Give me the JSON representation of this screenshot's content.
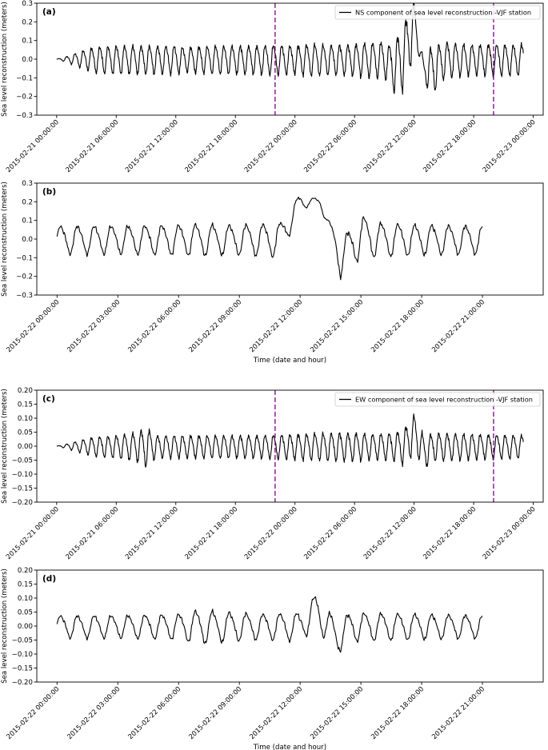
{
  "chart_data": [
    {
      "type": "line",
      "panel_label": "(a)",
      "ylabel": "Sea level reconstruction (meters)",
      "xlabel": "",
      "ylim": [
        -0.3,
        0.3
      ],
      "yticks": [
        -0.3,
        -0.2,
        -0.1,
        0.0,
        0.1,
        0.2,
        0.3
      ],
      "ytick_labels": [
        "−0.3",
        "−0.2",
        "−0.1",
        "0.0",
        "0.1",
        "0.2",
        "0.3"
      ],
      "xlim_hours": [
        -2,
        49
      ],
      "xticks_hours": [
        0,
        6,
        12,
        18,
        24,
        30,
        36,
        42,
        48
      ],
      "xtick_labels": [
        "2015-02-21 00:00:00",
        "2015-02-21 06:00:00",
        "2015-02-21 12:00:00",
        "2015-02-21 18:00:00",
        "2015-02-22 00:00:00",
        "2015-02-22 06:00:00",
        "2015-02-22 12:00:00",
        "2015-02-22 18:00:00",
        "2015-02-23 00:00:00"
      ],
      "legend": "NS component of sea level reconstruction -VJF station",
      "legend_position": "upper-right",
      "vlines_hours": [
        22,
        44
      ],
      "vline_color": "#800080",
      "series": [
        {
          "color": "#000000",
          "x_hours": [
            0,
            1,
            2,
            3,
            4,
            6,
            8,
            10,
            12,
            13,
            14,
            16,
            18,
            20,
            22,
            24,
            25.5,
            27,
            29,
            31,
            33.5,
            34.5,
            35.5,
            36.5,
            37,
            37.5,
            38,
            39,
            40,
            41,
            42,
            44,
            46,
            47
          ],
          "amplitude": [
            0.0,
            0.015,
            0.035,
            0.055,
            0.07,
            0.075,
            0.075,
            0.075,
            0.075,
            0.065,
            0.07,
            0.075,
            0.075,
            0.075,
            0.08,
            0.075,
            0.085,
            0.08,
            0.08,
            0.09,
            0.1,
            0.16,
            0.18,
            0.05,
            0.04,
            0.12,
            0.12,
            0.1,
            0.09,
            0.085,
            0.08,
            0.085,
            0.08,
            0.085
          ],
          "offset_x_hours": [
            0,
            33,
            34,
            35,
            36,
            37,
            38,
            39,
            47
          ],
          "offset_values": [
            0,
            0,
            -0.04,
            0.02,
            0.2,
            -0.06,
            -0.05,
            0,
            0
          ],
          "tidal_period_hours": 0.833
        }
      ]
    },
    {
      "type": "line",
      "panel_label": "(b)",
      "ylabel": "Sea level reconstruction (meters)",
      "xlabel": "Time (date and hour)",
      "ylim": [
        -0.3,
        0.3
      ],
      "yticks": [
        -0.3,
        -0.2,
        -0.1,
        0.0,
        0.1,
        0.2,
        0.3
      ],
      "ytick_labels": [
        "−0.3",
        "−0.2",
        "−0.1",
        "0.0",
        "0.1",
        "0.2",
        "0.3"
      ],
      "xlim_hours": [
        -1,
        24
      ],
      "xticks_hours": [
        0,
        3,
        6,
        9,
        12,
        15,
        18,
        21
      ],
      "xtick_labels": [
        "2015-02-22 00:00:00",
        "2015-02-22 03:00:00",
        "2015-02-22 06:00:00",
        "2015-02-22 09:00:00",
        "2015-02-22 12:00:00",
        "2015-02-22 15:00:00",
        "2015-02-22 18:00:00",
        "2015-02-22 21:00:00"
      ],
      "legend": "",
      "vlines_hours": [],
      "series": [
        {
          "color": "#000000",
          "x_hours": [
            0,
            3,
            6,
            7,
            8,
            9,
            10,
            11,
            12.5,
            13.5,
            14,
            15,
            16,
            18,
            21
          ],
          "amplitude": [
            0.075,
            0.075,
            0.08,
            0.085,
            0.08,
            0.08,
            0.085,
            0.09,
            0.02,
            0.03,
            0.1,
            0.11,
            0.09,
            0.08,
            0.075
          ],
          "offset_x_hours": [
            0,
            11,
            12,
            13,
            14,
            15,
            16,
            21
          ],
          "offset_values": [
            0,
            0,
            0.2,
            0.2,
            -0.1,
            0.02,
            0,
            0
          ],
          "tidal_period_hours": 0.833
        }
      ]
    },
    {
      "type": "line",
      "panel_label": "(c)",
      "ylabel": "Sea level reconstruction (meters)",
      "xlabel": "",
      "ylim": [
        -0.2,
        0.2
      ],
      "yticks": [
        -0.2,
        -0.15,
        -0.1,
        -0.05,
        0.0,
        0.05,
        0.1,
        0.15,
        0.2
      ],
      "ytick_labels": [
        "−0.20",
        "−0.15",
        "−0.10",
        "−0.05",
        "0.00",
        "0.05",
        "0.10",
        "0.15",
        "0.20"
      ],
      "xlim_hours": [
        -2,
        49
      ],
      "xticks_hours": [
        0,
        6,
        12,
        18,
        24,
        30,
        36,
        42,
        48
      ],
      "xtick_labels": [
        "2015-02-21 00:00:00",
        "2015-02-21 06:00:00",
        "2015-02-21 12:00:00",
        "2015-02-21 18:00:00",
        "2015-02-22 00:00:00",
        "2015-02-22 06:00:00",
        "2015-02-22 12:00:00",
        "2015-02-22 18:00:00",
        "2015-02-23 00:00:00"
      ],
      "legend": "EW component of sea level reconstruction -VJF station",
      "legend_position": "upper-right",
      "vlines_hours": [
        22,
        44
      ],
      "vline_color": "#800080",
      "series": [
        {
          "color": "#000000",
          "x_hours": [
            0,
            1,
            2,
            3,
            4,
            6,
            8,
            9,
            10,
            12,
            16,
            20,
            24,
            28,
            30,
            32,
            34,
            35.5,
            36.5,
            38,
            42,
            47
          ],
          "amplitude": [
            0.0,
            0.008,
            0.018,
            0.028,
            0.035,
            0.04,
            0.05,
            0.07,
            0.04,
            0.04,
            0.04,
            0.04,
            0.045,
            0.05,
            0.05,
            0.045,
            0.05,
            0.07,
            0.06,
            0.05,
            0.045,
            0.04
          ],
          "offset_x_hours": [
            0,
            35,
            36,
            37,
            38,
            47
          ],
          "offset_values": [
            0,
            0,
            0.05,
            -0.02,
            0,
            0
          ],
          "tidal_period_hours": 0.833
        }
      ]
    },
    {
      "type": "line",
      "panel_label": "(d)",
      "ylabel": "Sea level reconstruction (meters)",
      "xlabel": "Time (date and hour)",
      "ylim": [
        -0.2,
        0.2
      ],
      "yticks": [
        -0.2,
        -0.15,
        -0.1,
        -0.05,
        0.0,
        0.05,
        0.1,
        0.15,
        0.2
      ],
      "ytick_labels": [
        "−0.20",
        "−0.15",
        "−0.10",
        "−0.05",
        "0.00",
        "0.05",
        "0.10",
        "0.15",
        "0.20"
      ],
      "xlim_hours": [
        -1,
        24
      ],
      "xticks_hours": [
        0,
        3,
        6,
        9,
        12,
        15,
        18,
        21
      ],
      "xtick_labels": [
        "2015-02-22 00:00:00",
        "2015-02-22 03:00:00",
        "2015-02-22 06:00:00",
        "2015-02-22 09:00:00",
        "2015-02-22 12:00:00",
        "2015-02-22 15:00:00",
        "2015-02-22 18:00:00",
        "2015-02-22 21:00:00"
      ],
      "legend": "",
      "vlines_hours": [],
      "series": [
        {
          "color": "#000000",
          "x_hours": [
            0,
            3,
            6,
            7,
            10,
            12,
            13,
            14,
            15,
            18,
            21
          ],
          "amplitude": [
            0.04,
            0.04,
            0.045,
            0.06,
            0.045,
            0.05,
            0.06,
            0.055,
            0.05,
            0.045,
            0.04
          ],
          "offset_x_hours": [
            0,
            12,
            12.8,
            13.8,
            14.5,
            21
          ],
          "offset_values": [
            0,
            0,
            0.06,
            -0.04,
            0,
            0
          ],
          "tidal_period_hours": 0.833
        }
      ]
    }
  ]
}
